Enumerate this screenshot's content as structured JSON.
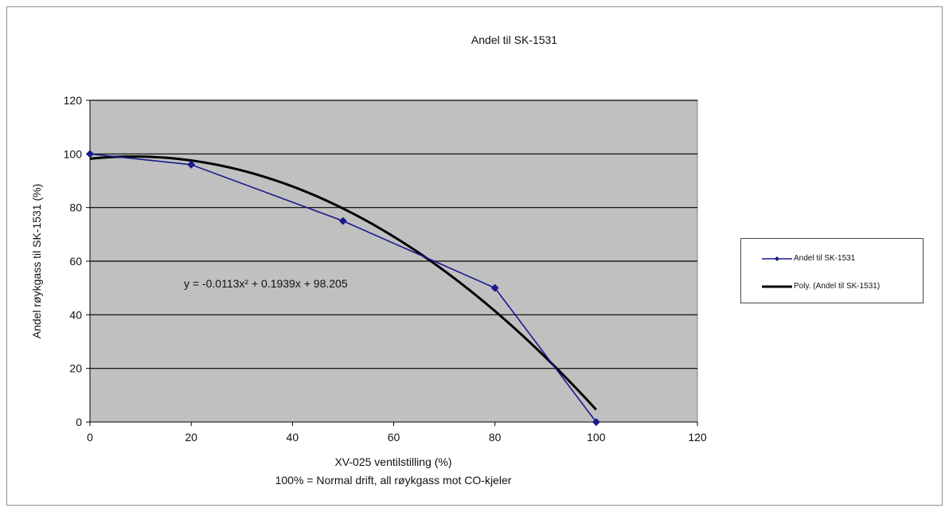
{
  "chart_data": {
    "type": "line",
    "title": "Andel til SK-1531",
    "xlabel": "XV-025 ventilstilling (%)",
    "xlabel_line2": "100% = Normal drift, all røykgass mot CO-kjeler",
    "ylabel": "Andel røykgass til SK-1531 (%)",
    "xlim": [
      0,
      120
    ],
    "ylim": [
      0,
      120
    ],
    "xticks": [
      0,
      20,
      40,
      60,
      80,
      100,
      120
    ],
    "yticks": [
      0,
      20,
      40,
      60,
      80,
      100,
      120
    ],
    "grid": "horizontal",
    "plot_background": "#c0c0c0",
    "legend_position": "right",
    "series": [
      {
        "name": "Andel til SK-1531",
        "color": "#1a1a8c",
        "marker": "diamond",
        "x": [
          0,
          20,
          50,
          80,
          100
        ],
        "y": [
          100,
          96,
          75,
          50,
          0
        ]
      },
      {
        "name": "Poly. (Andel til SK-1531)",
        "color": "#000000",
        "trendline": "polynomial",
        "coefficients": {
          "a": -0.0113,
          "b": 0.1939,
          "c": 98.205
        },
        "x_range": [
          0,
          100
        ]
      }
    ],
    "annotation": "y = -0.0113x² + 0.1939x + 98.205"
  }
}
